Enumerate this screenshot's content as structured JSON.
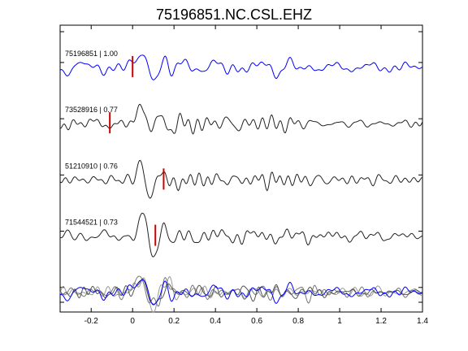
{
  "chart_data": {
    "type": "line",
    "title": "75196851.NC.CSL.EHZ",
    "xlabel": "",
    "ylabel": "",
    "xlim": [
      -0.35,
      1.4
    ],
    "xticks": [
      -0.2,
      0,
      0.2,
      0.4,
      0.6,
      0.8,
      1,
      1.2,
      1.4
    ],
    "xtick_labels": [
      "-0.2",
      "0",
      "0.2",
      "0.4",
      "0.6",
      "0.8",
      "1",
      "1.2",
      "1.4"
    ],
    "grid": false,
    "series": [
      {
        "label": "75196851 | 1.00",
        "color": "#0000ff",
        "pick_time": 0.0,
        "amp": 1.0,
        "seed": 11,
        "wavelets": [
          [
            0.05,
            1.0,
            0.028
          ],
          [
            0.11,
            -0.9,
            0.03
          ],
          [
            0.15,
            0.7,
            0.03
          ],
          [
            0.19,
            -0.5,
            0.03
          ],
          [
            0.24,
            0.35,
            0.03
          ]
        ]
      },
      {
        "label": "73528916 | 0.77",
        "color": "#222222",
        "pick_time": -0.11,
        "amp": 1.0,
        "seed": 29,
        "wavelets": [
          [
            0.05,
            1.0,
            0.03
          ],
          [
            0.08,
            -0.6,
            0.025
          ],
          [
            0.12,
            0.55,
            0.03
          ],
          [
            0.18,
            -0.4,
            0.03
          ]
        ]
      },
      {
        "label": "51210910 | 0.76",
        "color": "#222222",
        "pick_time": 0.15,
        "amp": 1.0,
        "seed": 47,
        "wavelets": [
          [
            0.04,
            0.9,
            0.025
          ],
          [
            0.09,
            -1.0,
            0.03
          ],
          [
            0.14,
            0.6,
            0.03
          ],
          [
            0.2,
            -0.4,
            0.03
          ]
        ]
      },
      {
        "label": "71544521 | 0.73",
        "color": "#222222",
        "pick_time": 0.11,
        "amp": 1.0,
        "seed": 71,
        "wavelets": [
          [
            0.05,
            1.0,
            0.028
          ],
          [
            0.1,
            -1.0,
            0.03
          ],
          [
            0.15,
            0.55,
            0.03
          ],
          [
            0.21,
            -0.35,
            0.03
          ]
        ]
      },
      {
        "label": "",
        "color": "#888888",
        "stack": true,
        "traces": [
          {
            "color": "#999999",
            "seed": 101,
            "wavelets": [
              [
                0.05,
                0.9,
                0.028
              ],
              [
                0.1,
                -1.0,
                0.03
              ],
              [
                0.15,
                0.6,
                0.03
              ]
            ]
          },
          {
            "color": "#777777",
            "seed": 131,
            "wavelets": [
              [
                0.04,
                1.0,
                0.028
              ],
              [
                0.1,
                -0.9,
                0.03
              ],
              [
                0.16,
                0.5,
                0.03
              ]
            ]
          },
          {
            "color": "#555555",
            "seed": 151,
            "wavelets": [
              [
                0.05,
                0.8,
                0.03
              ],
              [
                0.11,
                -1.0,
                0.03
              ],
              [
                0.17,
                0.4,
                0.03
              ]
            ]
          },
          {
            "color": "#0000ff",
            "seed": 11,
            "wavelets": [
              [
                0.05,
                1.0,
                0.028
              ],
              [
                0.11,
                -0.9,
                0.03
              ],
              [
                0.15,
                0.7,
                0.03
              ],
              [
                0.19,
                -0.5,
                0.03
              ]
            ]
          }
        ]
      }
    ],
    "pick_color": "#cc0000"
  }
}
